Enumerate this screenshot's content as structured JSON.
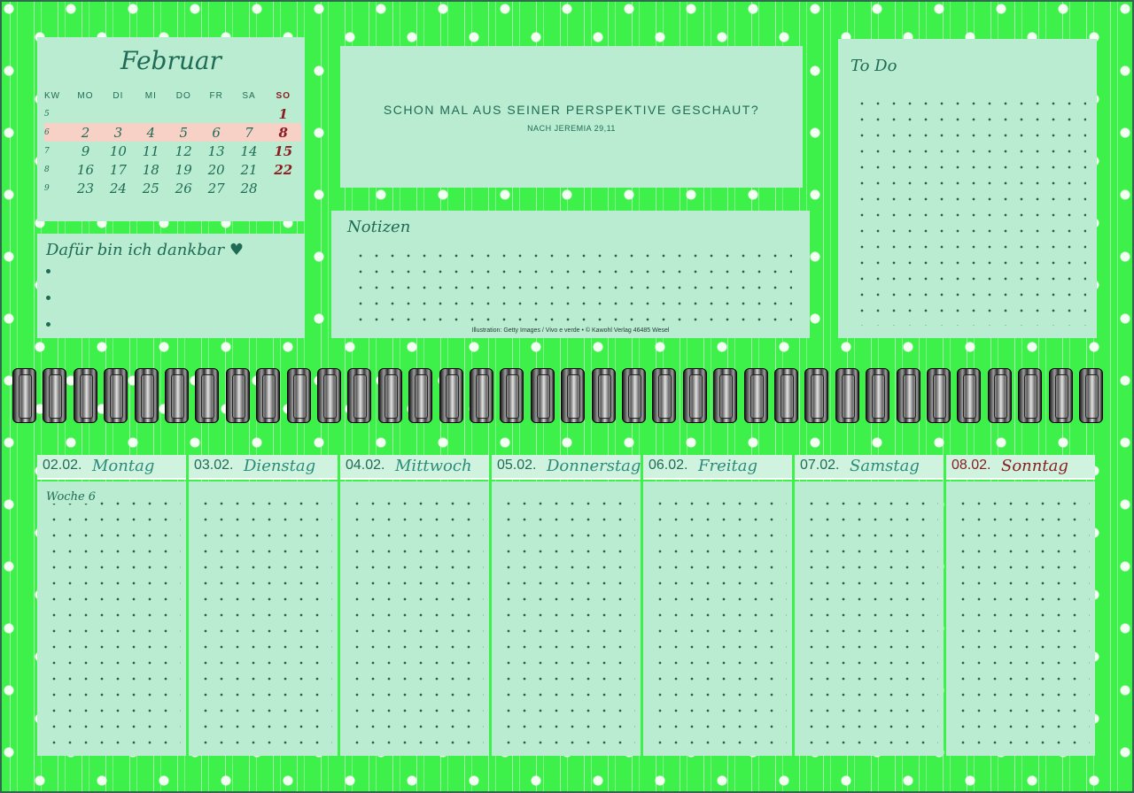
{
  "calendar": {
    "month": "Februar",
    "headers": [
      "KW",
      "MO",
      "DI",
      "MI",
      "DO",
      "FR",
      "SA",
      "SO"
    ],
    "weeks": [
      {
        "kw": "5",
        "days": [
          "",
          "",
          "",
          "",
          "",
          "",
          "1"
        ]
      },
      {
        "kw": "6",
        "days": [
          "2",
          "3",
          "4",
          "5",
          "6",
          "7",
          "8"
        ]
      },
      {
        "kw": "7",
        "days": [
          "9",
          "10",
          "11",
          "12",
          "13",
          "14",
          "15"
        ]
      },
      {
        "kw": "8",
        "days": [
          "16",
          "17",
          "18",
          "19",
          "20",
          "21",
          "22"
        ]
      },
      {
        "kw": "9",
        "days": [
          "23",
          "24",
          "25",
          "26",
          "27",
          "28",
          ""
        ]
      }
    ],
    "highlight_color": "#f7d1c5",
    "sunday_color": "#8b1c22"
  },
  "gratitude": {
    "title": "Dafür bin ich dankbar ♥"
  },
  "quote": {
    "text": "SCHON MAL AUS SEINER PERSPEKTIVE GESCHAUT?",
    "source": "NACH JEREMIA 29,11"
  },
  "notes": {
    "title": "Notizen",
    "credit": "Illustration: Getty Images / Vivo e verde • © Kawohl Verlag 46485 Wesel"
  },
  "todo": {
    "title": "To Do"
  },
  "week": {
    "label": "Woche 6",
    "days": [
      {
        "date": "02.02.",
        "name": "Montag"
      },
      {
        "date": "03.02.",
        "name": "Dienstag"
      },
      {
        "date": "04.02.",
        "name": "Mittwoch"
      },
      {
        "date": "05.02.",
        "name": "Donnerstag"
      },
      {
        "date": "06.02.",
        "name": "Freitag"
      },
      {
        "date": "07.02.",
        "name": "Samstag"
      },
      {
        "date": "08.02.",
        "name": "Sonntag"
      }
    ]
  },
  "colors": {
    "background": "#3ef04a",
    "panel": "#b9ecd0",
    "ink": "#1f6b55",
    "sunday": "#8b1c22"
  }
}
